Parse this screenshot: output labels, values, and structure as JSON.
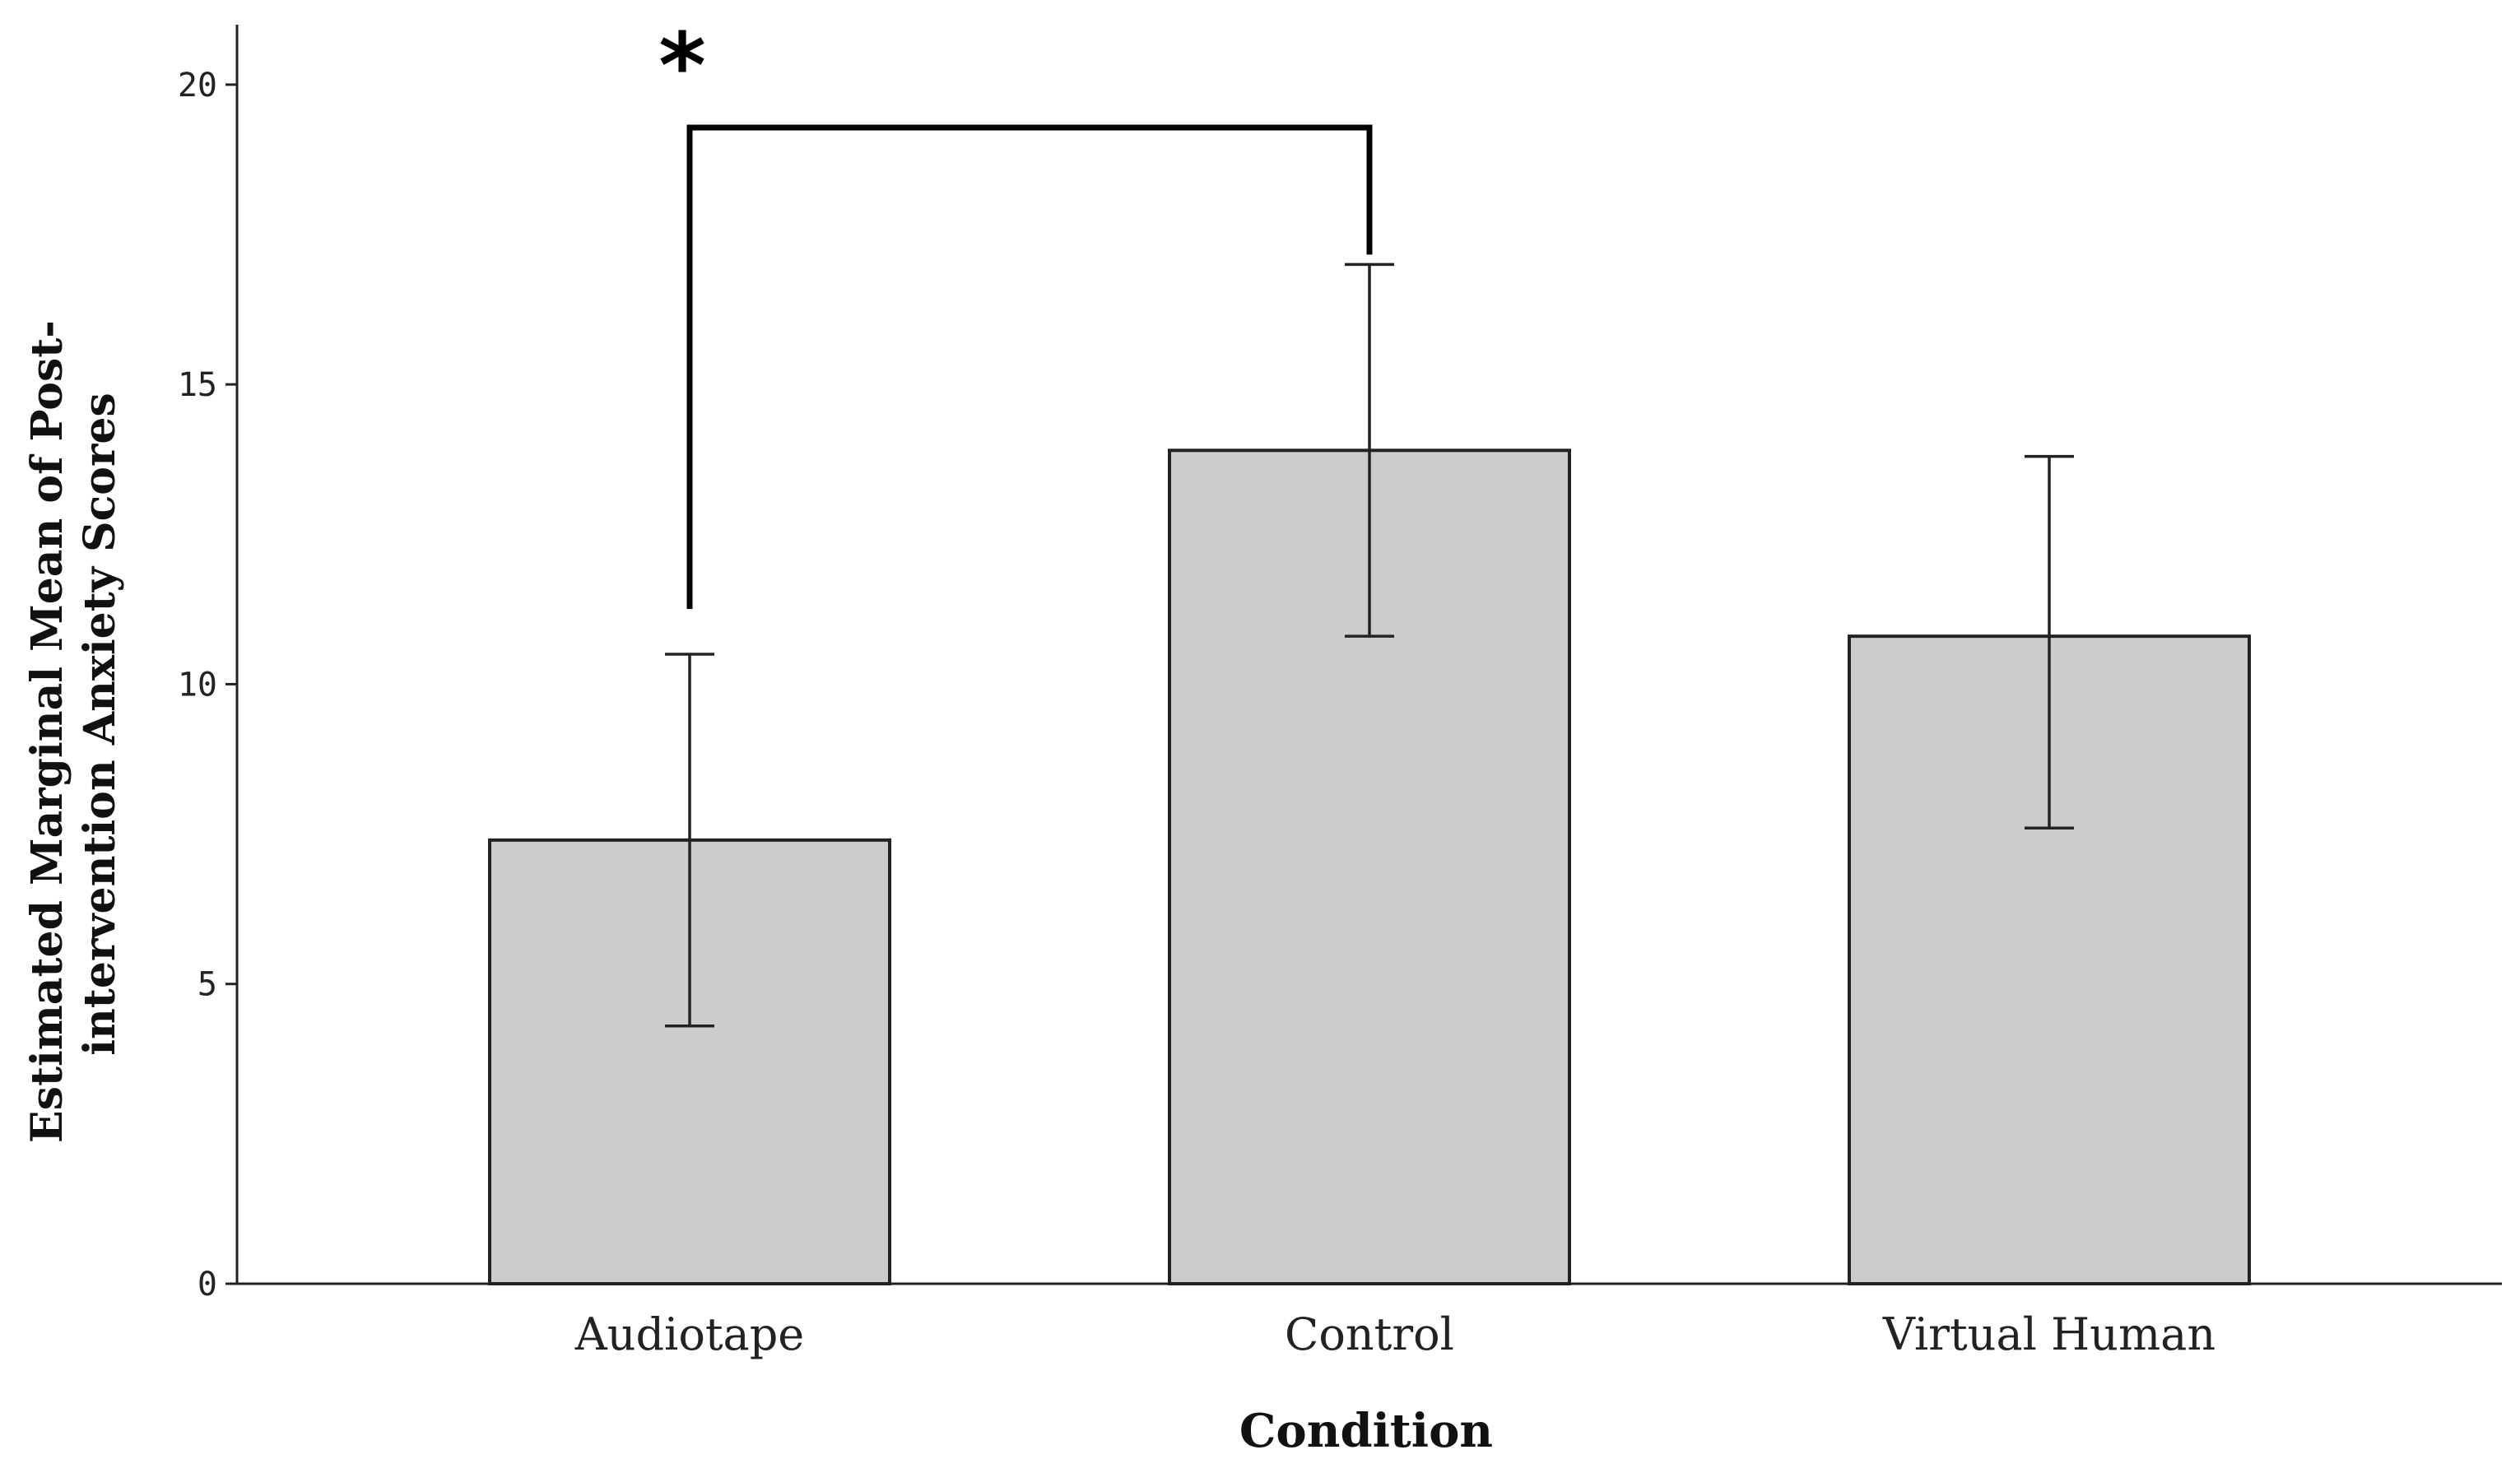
{
  "chart_data": {
    "type": "bar",
    "title": "",
    "xlabel": "Condition",
    "ylabel_lines": [
      "Estimated Marginal Mean of Post-",
      "intervention Anxiety Scores"
    ],
    "categories": [
      "Audiotape",
      "Control",
      "Virtual Human"
    ],
    "values": [
      7.4,
      13.9,
      10.8
    ],
    "error_bars": [
      {
        "low": 4.3,
        "high": 10.5
      },
      {
        "low": 10.8,
        "high": 17.0
      },
      {
        "low": 7.6,
        "high": 13.8
      }
    ],
    "ylim": [
      0,
      21
    ],
    "yticks": [
      0,
      5,
      10,
      15,
      20
    ],
    "ytick_labels": [
      "0",
      "5",
      "10",
      "15",
      "20"
    ],
    "grid": false,
    "legend": "none",
    "bar_color": "#cccccc",
    "bar_edge_color": "#222222",
    "significance": {
      "from_category": "Audiotape",
      "to_category": "Control",
      "label": "*"
    }
  }
}
